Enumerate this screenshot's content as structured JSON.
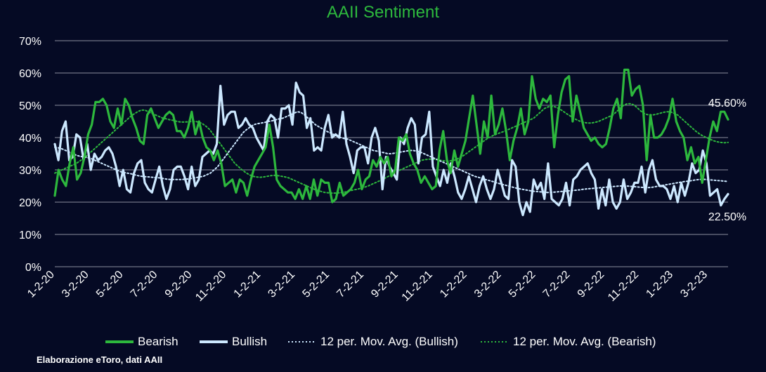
{
  "chart_data": {
    "type": "line",
    "title": "AAII Sentiment",
    "source": "Elaborazione eToro, dati AAII",
    "x_tick_labels": [
      "1-2-20",
      "3-2-20",
      "5-2-20",
      "7-2-20",
      "9-2-20",
      "11-2-20",
      "1-2-21",
      "3-2-21",
      "5-2-21",
      "7-2-21",
      "9-2-21",
      "11-2-21",
      "1-2-22",
      "3-2-22",
      "5-2-22",
      "7-2-22",
      "9-2-22",
      "11-2-22",
      "1-2-23",
      "3-2-23"
    ],
    "x_range": [
      "1-2-20",
      "3-23-23"
    ],
    "y_ticks": [
      "0%",
      "10%",
      "20%",
      "30%",
      "40%",
      "50%",
      "60%",
      "70%"
    ],
    "ylim": [
      0,
      70
    ],
    "y_unit": "%",
    "grid": "horizontal",
    "legend_placement": "bottom",
    "end_labels": {
      "bearish": "45.60%",
      "bullish": "22.50%"
    },
    "series": [
      {
        "name": "Bearish",
        "color": "#2db83d",
        "style": "solid",
        "values": [
          22.0,
          30.0,
          27.0,
          25.0,
          32.0,
          37.0,
          27.0,
          29.0,
          34.0,
          41.0,
          44.0,
          51.0,
          51.0,
          52.0,
          50.0,
          45.0,
          43.0,
          49.0,
          44.0,
          52.0,
          50.0,
          46.0,
          43.0,
          39.0,
          38.0,
          47.0,
          49.0,
          46.0,
          43.0,
          45.0,
          47.0,
          48.0,
          47.0,
          42.0,
          42.0,
          40.0,
          43.0,
          48.0,
          41.0,
          45.0,
          40.0,
          37.0,
          36.0,
          33.0,
          36.0,
          32.0,
          25.0,
          26.0,
          27.0,
          23.0,
          27.0,
          26.0,
          22.0,
          27.0,
          31.0,
          33.0,
          35.0,
          37.0,
          44.0,
          37.0,
          27.0,
          25.0,
          24.0,
          23.0,
          23.0,
          21.0,
          24.0,
          21.0,
          25.0,
          21.0,
          27.0,
          22.0,
          27.0,
          26.0,
          26.0,
          20.0,
          21.0,
          26.0,
          22.0,
          23.0,
          24.0,
          26.0,
          30.0,
          24.0,
          27.0,
          28.0,
          33.0,
          31.0,
          34.0,
          32.0,
          34.0,
          28.0,
          30.0,
          40.0,
          39.0,
          41.0,
          35.0,
          32.0,
          30.0,
          26.0,
          28.0,
          26.0,
          24.0,
          25.0,
          36.0,
          42.0,
          33.0,
          29.0,
          36.0,
          31.0,
          35.0,
          39.0,
          46.0,
          53.0,
          44.0,
          35.0,
          45.0,
          40.0,
          53.0,
          41.0,
          44.0,
          49.0,
          42.0,
          33.0,
          39.0,
          43.0,
          49.0,
          41.0,
          45.0,
          59.0,
          52.0,
          49.0,
          52.0,
          51.0,
          53.0,
          37.0,
          47.0,
          54.0,
          58.0,
          59.0,
          45.0,
          53.0,
          48.0,
          43.0,
          41.0,
          39.0,
          40.0,
          38.0,
          37.0,
          38.0,
          43.0,
          49.0,
          52.0,
          46.0,
          61.0,
          61.0,
          53.0,
          55.0,
          56.0,
          50.0,
          33.0,
          47.0,
          40.0,
          40.0,
          41.0,
          43.0,
          46.0,
          52.0,
          45.0,
          42.0,
          40.0,
          33.0,
          37.0,
          32.0,
          34.0,
          26.0,
          33.0,
          40.0,
          45.0,
          42.0,
          48.0,
          48.0,
          45.6
        ],
        "end_label": "45.60%"
      },
      {
        "name": "Bullish",
        "color": "#cce8ff",
        "style": "solid",
        "values": [
          38.0,
          33.0,
          42.0,
          45.0,
          33.0,
          34.0,
          41.0,
          40.0,
          33.0,
          38.0,
          30.0,
          35.0,
          33.0,
          34.0,
          36.0,
          37.0,
          35.0,
          31.0,
          25.0,
          30.0,
          24.0,
          23.0,
          29.0,
          32.0,
          33.0,
          26.0,
          24.0,
          23.0,
          27.0,
          31.0,
          25.0,
          21.0,
          24.0,
          30.0,
          31.0,
          31.0,
          28.0,
          24.0,
          31.0,
          25.0,
          27.0,
          34.0,
          35.0,
          36.0,
          35.0,
          38.0,
          56.0,
          44.0,
          47.0,
          48.0,
          48.0,
          43.0,
          44.0,
          46.0,
          44.0,
          43.0,
          40.0,
          38.0,
          36.0,
          45.0,
          47.0,
          46.0,
          40.0,
          49.0,
          49.0,
          50.0,
          44.0,
          57.0,
          54.0,
          53.0,
          43.0,
          46.0,
          36.0,
          37.0,
          36.0,
          43.0,
          47.0,
          40.0,
          41.0,
          40.0,
          48.0,
          38.0,
          34.0,
          29.0,
          36.0,
          37.0,
          37.0,
          32.0,
          40.0,
          43.0,
          39.0,
          24.0,
          34.0,
          31.0,
          29.0,
          27.0,
          40.0,
          38.0,
          43.0,
          46.0,
          44.0,
          32.0,
          40.0,
          41.0,
          48.0,
          31.0,
          28.0,
          25.0,
          30.0,
          26.0,
          32.0,
          28.0,
          23.0,
          21.0,
          24.0,
          28.0,
          24.0,
          20.0,
          25.0,
          28.0,
          24.0,
          21.0,
          24.0,
          30.0,
          26.0,
          22.0,
          21.0,
          33.0,
          31.0,
          20.0,
          16.0,
          20.0,
          17.0,
          27.0,
          24.0,
          26.0,
          21.0,
          32.0,
          21.0,
          20.0,
          19.0,
          21.0,
          26.0,
          19.0,
          27.0,
          28.0,
          30.0,
          31.0,
          32.0,
          29.0,
          27.0,
          18.0,
          24.0,
          19.0,
          27.0,
          20.0,
          18.0,
          20.0,
          27.0,
          21.0,
          23.0,
          26.0,
          26.0,
          31.0,
          23.0,
          30.0,
          33.0,
          27.0,
          25.0,
          25.0,
          24.0,
          21.0,
          25.0,
          20.0,
          26.0,
          22.0,
          26.0,
          32.0,
          29.0,
          30.0,
          36.0,
          32.0,
          22.0,
          23.0,
          24.0,
          19.0,
          21.0,
          22.5
        ],
        "end_label": "22.50%"
      },
      {
        "name": "12 per. Mov. Avg. (Bullish)",
        "color": "#cce8ff",
        "style": "dotted",
        "values": [
          37.0,
          36.8,
          36.5,
          36.0,
          35.5,
          35.0,
          34.5,
          34.2,
          34.0,
          33.8,
          33.5,
          33.0,
          32.5,
          32.0,
          31.5,
          31.0,
          30.5,
          30.0,
          29.5,
          29.2,
          29.0,
          28.8,
          28.5,
          28.2,
          28.0,
          27.9,
          27.8,
          27.7,
          27.6,
          27.5,
          27.3,
          27.1,
          27.0,
          27.0,
          27.0,
          27.0,
          27.1,
          27.2,
          27.4,
          27.6,
          27.8,
          28.0,
          28.5,
          29.0,
          30.0,
          31.0,
          32.5,
          34.0,
          35.5,
          37.0,
          38.5,
          40.0,
          41.5,
          42.5,
          43.3,
          44.0,
          44.3,
          44.5,
          44.7,
          45.0,
          45.2,
          45.5,
          45.8,
          46.0,
          46.5,
          47.0,
          47.5,
          48.0,
          47.8,
          47.0,
          46.0,
          45.0,
          44.0,
          43.3,
          42.7,
          42.0,
          41.5,
          41.0,
          40.5,
          40.0,
          39.7,
          39.5,
          39.0,
          38.5,
          38.0,
          37.5,
          37.0,
          36.5,
          36.0,
          35.8,
          35.5,
          35.3,
          35.0,
          35.0,
          35.2,
          35.4,
          35.6,
          35.8,
          36.0,
          36.0,
          35.8,
          35.5,
          35.0,
          34.5,
          34.0,
          33.5,
          33.0,
          32.5,
          32.0,
          31.5,
          31.0,
          30.5,
          30.0,
          29.5,
          29.0,
          28.5,
          28.0,
          27.7,
          27.4,
          27.0,
          26.7,
          26.4,
          26.0,
          25.7,
          25.4,
          25.1,
          24.8,
          24.5,
          24.2,
          24.0,
          23.8,
          23.6,
          23.4,
          23.3,
          23.2,
          23.1,
          23.0,
          23.0,
          23.1,
          23.2,
          23.3,
          23.4,
          23.5,
          23.6,
          23.7,
          23.8,
          24.0,
          24.1,
          24.2,
          24.3,
          24.4,
          24.5,
          24.6,
          24.7,
          24.8,
          24.9,
          25.0,
          25.0,
          25.0,
          24.9,
          24.8,
          24.7,
          24.6,
          24.5,
          24.5,
          24.6,
          24.8,
          25.0,
          25.2,
          25.4,
          25.6,
          25.8,
          26.0,
          26.2,
          26.4,
          26.5,
          26.7,
          26.9,
          27.0,
          27.1,
          27.0,
          26.9,
          26.8,
          26.7,
          26.6,
          26.5,
          26.4
        ],
        "end_label": ""
      },
      {
        "name": "12 per. Mov. Avg. (Bearish)",
        "color": "#2db83d",
        "style": "dotted",
        "values": [
          29.0,
          29.5,
          30.0,
          30.5,
          31.0,
          31.5,
          32.0,
          32.8,
          33.5,
          34.5,
          35.5,
          36.5,
          37.5,
          38.5,
          39.5,
          40.5,
          41.5,
          42.5,
          43.5,
          44.5,
          45.5,
          46.5,
          47.3,
          48.0,
          48.5,
          48.5,
          48.0,
          47.5,
          47.0,
          46.5,
          46.0,
          45.8,
          45.5,
          45.3,
          45.0,
          44.8,
          44.8,
          44.9,
          45.0,
          45.0,
          44.8,
          44.3,
          43.5,
          42.5,
          41.0,
          39.5,
          38.0,
          36.5,
          35.0,
          33.5,
          32.0,
          31.0,
          30.0,
          29.2,
          28.5,
          28.0,
          27.8,
          27.7,
          27.8,
          28.0,
          28.2,
          28.3,
          28.2,
          28.0,
          27.8,
          27.5,
          27.0,
          26.5,
          26.0,
          25.5,
          25.0,
          24.5,
          24.0,
          23.6,
          23.3,
          23.0,
          22.9,
          22.8,
          22.8,
          22.9,
          23.0,
          23.2,
          23.5,
          23.8,
          24.0,
          24.3,
          24.6,
          25.0,
          25.5,
          26.0,
          26.5,
          27.0,
          27.6,
          28.2,
          28.8,
          29.4,
          30.0,
          30.5,
          31.0,
          31.5,
          32.0,
          32.5,
          33.0,
          33.2,
          33.3,
          33.3,
          33.2,
          33.0,
          32.8,
          32.7,
          32.8,
          33.0,
          33.5,
          34.0,
          34.8,
          35.6,
          36.4,
          37.2,
          38.0,
          38.8,
          39.6,
          40.2,
          40.8,
          41.2,
          41.6,
          42.0,
          42.5,
          43.0,
          43.5,
          44.0,
          44.5,
          45.0,
          45.5,
          46.0,
          47.0,
          48.0,
          49.0,
          49.5,
          49.7,
          49.5,
          49.0,
          48.3,
          47.5,
          46.8,
          46.0,
          45.5,
          45.0,
          44.7,
          44.5,
          44.5,
          44.7,
          45.0,
          45.5,
          46.0,
          46.5,
          47.0,
          48.0,
          49.0,
          50.0,
          50.5,
          50.5,
          50.0,
          49.0,
          48.0,
          47.3,
          47.0,
          47.0,
          47.2,
          47.5,
          47.8,
          48.0,
          48.0,
          47.5,
          47.0,
          46.0,
          45.0,
          44.0,
          43.0,
          42.0,
          41.2,
          40.5,
          40.0,
          39.5,
          39.0,
          38.7,
          38.5,
          38.4,
          38.5
        ],
        "end_label": ""
      }
    ]
  }
}
